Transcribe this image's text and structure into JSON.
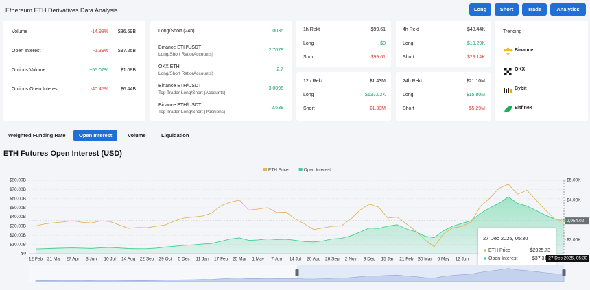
{
  "header": {
    "title": "Ethereum ETH Derivatives Data Analysis",
    "buttons": [
      "Long",
      "Short",
      "Trade",
      "Analytics"
    ]
  },
  "stats": [
    {
      "label": "Volume",
      "change": "-14.98%",
      "value": "$36.69B"
    },
    {
      "label": "Open Interest",
      "change": "-1.39%",
      "value": "$37.26B"
    },
    {
      "label": "Options Volume",
      "change": "+55.07%",
      "value": "$1.08B"
    },
    {
      "label": "Options Open Interest",
      "change": "-40.45%",
      "value": "$6.44B"
    }
  ],
  "ratios": [
    {
      "lines": [
        "Long/Short (24h)"
      ],
      "value": "1.0036"
    },
    {
      "lines": [
        "Binance ETH/USDT",
        "Long/Short Ratio(Accounts)"
      ],
      "value": "2.7078"
    },
    {
      "lines": [
        "OKX ETH",
        "Long/Short Ratio(Accounts)"
      ],
      "value": "2.7"
    },
    {
      "lines": [
        "Binance ETH/USDT",
        "Top Trader Long/Short (Accounts)"
      ],
      "value": "3.0096"
    },
    {
      "lines": [
        "Binance ETH/USDT",
        "Top Trader Long/Short (Positions)"
      ],
      "value": "2.638"
    }
  ],
  "rekt": [
    {
      "title": "1h Rekt",
      "total": "$99.61",
      "rows": [
        {
          "label": "Long",
          "value": "$0"
        },
        {
          "label": "Short",
          "value": "$99.61"
        }
      ]
    },
    {
      "title": "4h Rekt",
      "total": "$48.44K",
      "rows": [
        {
          "label": "Long",
          "value": "$19.29K"
        },
        {
          "label": "Short",
          "value": "$29.14K"
        }
      ]
    },
    {
      "title": "12h Rekt",
      "total": "$1.43M",
      "rows": [
        {
          "label": "Long",
          "value": "$137.02K"
        },
        {
          "label": "Short",
          "value": "$1.30M"
        }
      ]
    },
    {
      "title": "24h Rekt",
      "total": "$21.10M",
      "rows": [
        {
          "label": "Long",
          "value": "$15.80M"
        },
        {
          "label": "Short",
          "value": "$5.29M"
        }
      ]
    }
  ],
  "trending": {
    "title": "Trending",
    "items": [
      "Binance",
      "OKX",
      "Bybit",
      "Bitfinex"
    ]
  },
  "tabs": {
    "items": [
      "Weighted Funding Rate",
      "Open Interest",
      "Volume",
      "Liquidation"
    ],
    "active": 1
  },
  "chart_data": {
    "type": "line",
    "title": "ETH Futures Open Interest (USD)",
    "legend": "top",
    "grid": true,
    "categories": [
      "12 Feb",
      null,
      "21 Mar",
      null,
      "27 Apr",
      null,
      "3 Jun",
      null,
      "10 Jul",
      null,
      "14 Aug",
      null,
      "22 Sep",
      null,
      "29 Oct",
      null,
      "5 Dec",
      null,
      "11 Jan",
      null,
      "17 Feb",
      null,
      "25 Mar",
      null,
      "1 May",
      null,
      "7 Jun",
      null,
      "14 Jul",
      null,
      "20 Aug",
      null,
      "26 Sep",
      null,
      "2 Nov",
      null,
      "9 Dec",
      null,
      "15 Jan",
      null,
      "21 Feb",
      null,
      "30 Mar",
      null,
      "6 May",
      null,
      "12 Jun",
      null,
      null,
      null,
      null,
      null,
      null,
      null,
      null,
      null,
      null,
      null
    ],
    "series": [
      {
        "name": "ETH Price",
        "color": "#e3b45c",
        "axis": "y2",
        "fill": false,
        "values": [
          2700,
          2800,
          2860,
          2900,
          2960,
          2880,
          2850,
          2950,
          2920,
          2750,
          2580,
          2620,
          2610,
          2680,
          2750,
          2950,
          3100,
          3150,
          3200,
          3350,
          3720,
          3900,
          4000,
          3500,
          3550,
          3620,
          3380,
          3400,
          3050,
          2800,
          2520,
          2600,
          2680,
          2700,
          3050,
          3500,
          3800,
          3650,
          3100,
          3150,
          2800,
          2450,
          2000,
          1650,
          2300,
          2600,
          2680,
          2900,
          3700,
          4100,
          4600,
          4800,
          4300,
          4500,
          4000,
          3500,
          3050,
          2925.73
        ]
      },
      {
        "name": "Open Interest",
        "color": "#3fcf8e",
        "fill": true,
        "values": [
          5.2,
          5.5,
          5.8,
          6.1,
          6.3,
          6.0,
          5.7,
          6.4,
          6.8,
          6.2,
          5.6,
          5.4,
          5.5,
          6.0,
          7.2,
          8.1,
          9.0,
          9.6,
          10.5,
          11.2,
          13.5,
          16.0,
          17.2,
          14.5,
          15.0,
          16.2,
          15.4,
          15.8,
          14.6,
          13.2,
          12.8,
          14.0,
          16.0,
          16.8,
          19.5,
          23.5,
          28.0,
          27.5,
          30.0,
          31.5,
          27.0,
          24.0,
          19.0,
          17.5,
          25.0,
          30.0,
          33.0,
          36.0,
          44.0,
          50.0,
          55.0,
          62.0,
          55.0,
          52.0,
          47.0,
          42.0,
          38.0,
          37.31
        ]
      }
    ],
    "ylim": [
      0,
      80
    ],
    "yticks": [
      {
        "value": 0,
        "label": "$0"
      },
      {
        "value": 10,
        "label": "$10.00B"
      },
      {
        "value": 20,
        "label": "$20.00B"
      },
      {
        "value": 30,
        "label": "$30.00B"
      },
      {
        "value": 40,
        "label": "$40.00B"
      },
      {
        "value": 50,
        "label": "$50.00B"
      },
      {
        "value": 60,
        "label": "$60.00B"
      },
      {
        "value": 70,
        "label": "$70.00B"
      },
      {
        "value": 80,
        "label": "$80.00B"
      }
    ],
    "y2lim": [
      1300,
      5000
    ],
    "y2ticks": [
      {
        "value": 5000,
        "label": "$5.00K"
      },
      {
        "value": 4000,
        "label": "$4.00K"
      },
      {
        "value": 2000,
        "label": "$2.00K"
      }
    ],
    "crosshair_y2": {
      "value": 2954.02,
      "label": "2,954.02"
    },
    "tooltip": {
      "title": "27 Dec 2025, 05:30",
      "values": [
        "$2925.73",
        "$37.31B"
      ]
    }
  }
}
